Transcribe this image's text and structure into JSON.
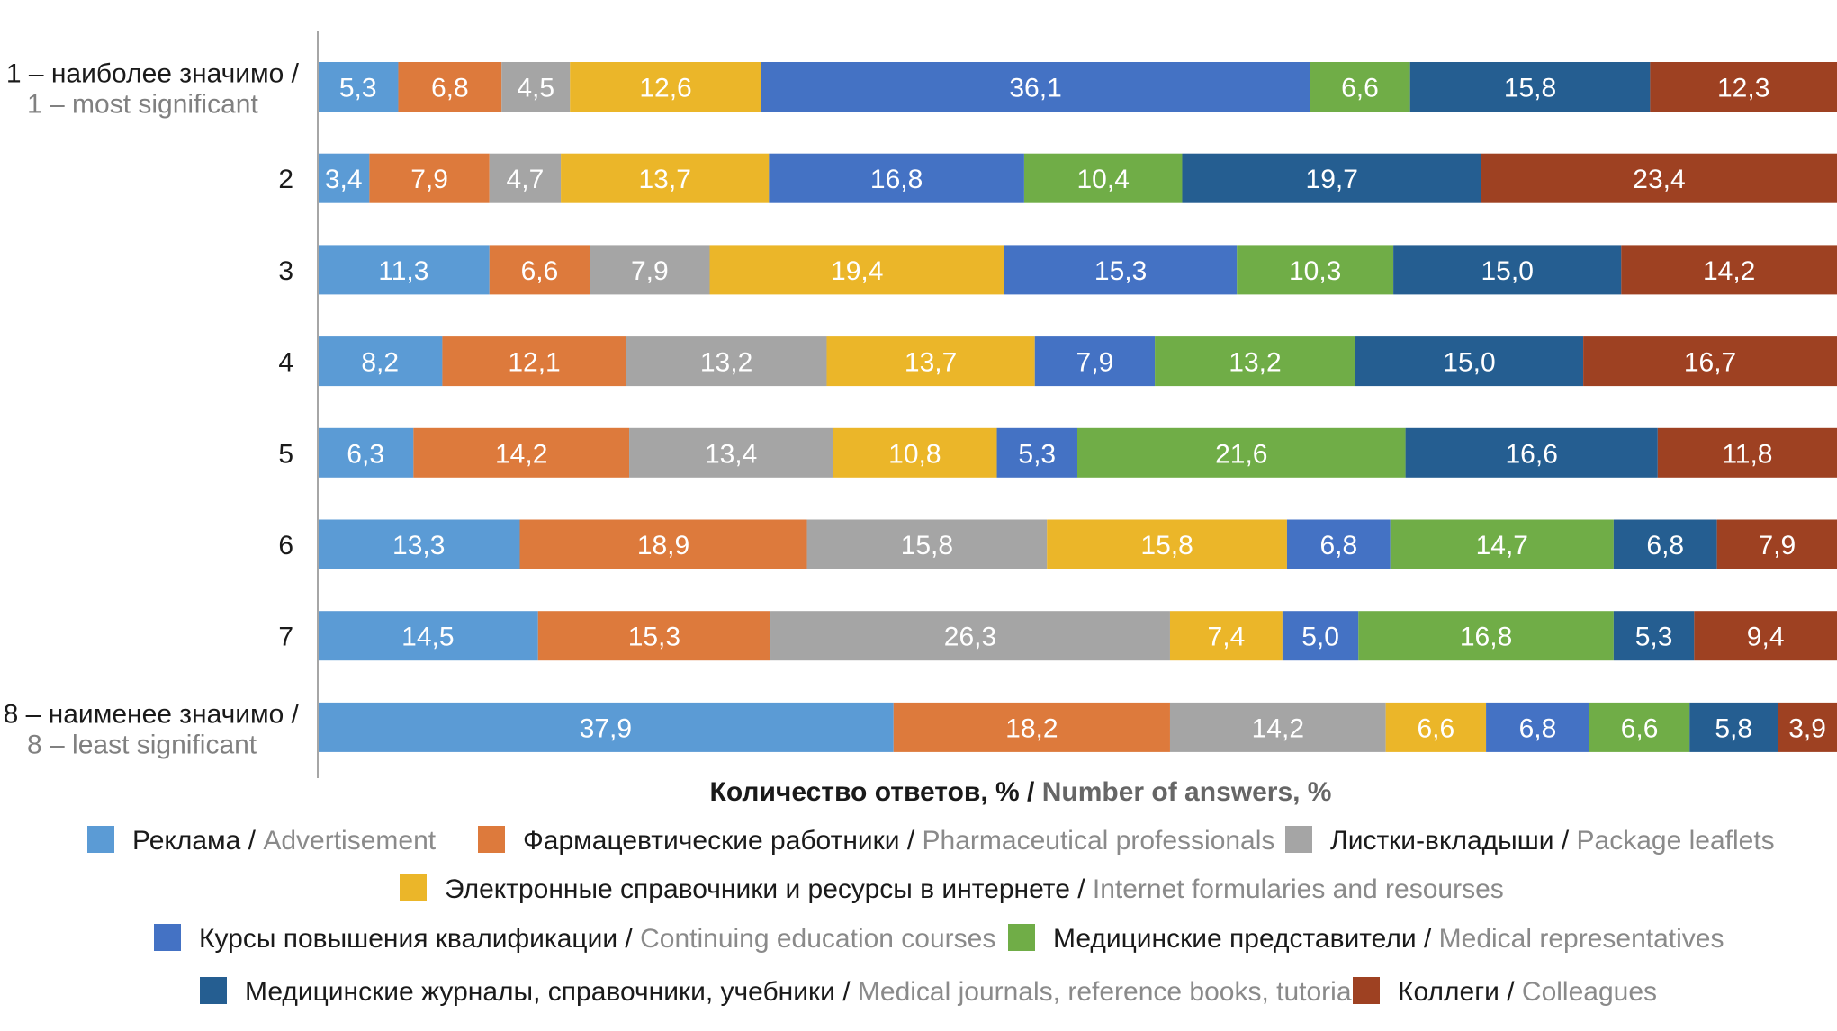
{
  "chart_data": {
    "type": "bar",
    "orientation": "horizontal",
    "stacked": true,
    "categories": [
      {
        "ru": "1 – наиболее значимо /",
        "en": "1 – most significant"
      },
      {
        "ru": "2",
        "en": ""
      },
      {
        "ru": "3",
        "en": ""
      },
      {
        "ru": "4",
        "en": ""
      },
      {
        "ru": "5",
        "en": ""
      },
      {
        "ru": "6",
        "en": ""
      },
      {
        "ru": "7",
        "en": ""
      },
      {
        "ru": "8 – наименее значимо /",
        "en": "8 – least significant"
      }
    ],
    "series": [
      {
        "ru": "Реклама",
        "en": "Advertisement",
        "color": "#5b9bd5",
        "values": [
          5.3,
          3.4,
          11.3,
          8.2,
          6.3,
          13.3,
          14.5,
          37.9
        ]
      },
      {
        "ru": "Фармацевтические работники",
        "en": "Pharmaceutical professionals",
        "color": "#dd7a3c",
        "values": [
          6.8,
          7.9,
          6.6,
          12.1,
          14.2,
          18.9,
          15.3,
          18.2
        ]
      },
      {
        "ru": "Листки-вкладыши",
        "en": "Package leaflets",
        "color": "#a5a5a5",
        "values": [
          4.5,
          4.7,
          7.9,
          13.2,
          13.4,
          15.8,
          26.3,
          14.2
        ]
      },
      {
        "ru": "Электронные справочники и ресурсы в интернете",
        "en": "Internet formularies and resourses",
        "color": "#ebb629",
        "values": [
          12.6,
          13.7,
          19.4,
          13.7,
          10.8,
          15.8,
          7.4,
          6.6
        ]
      },
      {
        "ru": "Курсы повышения квалификации",
        "en": "Continuing education courses",
        "color": "#4472c4",
        "values": [
          36.1,
          16.8,
          15.3,
          7.9,
          5.3,
          6.8,
          5.0,
          6.8
        ]
      },
      {
        "ru": "Медицинские представители",
        "en": "Medical representatives",
        "color": "#70ad47",
        "values": [
          6.6,
          10.4,
          10.3,
          13.2,
          21.6,
          14.7,
          16.8,
          6.6
        ]
      },
      {
        "ru": "Медицинские журналы, справочники, учебники",
        "en": "Medical journals, reference books, tutorials",
        "color": "#255e91",
        "values": [
          15.8,
          19.7,
          15.0,
          15.0,
          16.6,
          6.8,
          5.3,
          5.8
        ]
      },
      {
        "ru": "Коллеги",
        "en": "Colleagues",
        "color": "#9e4122",
        "values": [
          12.3,
          23.4,
          14.2,
          16.7,
          11.8,
          7.9,
          9.4,
          3.9
        ]
      }
    ],
    "xlabel": {
      "ru": "Количество ответов, % /",
      "en": "Number of answers, %"
    },
    "xlim": [
      0,
      100
    ],
    "grid": false,
    "decimal_separator": ",",
    "legend_position": "bottom",
    "colors": {
      "axis": "#a6a6a6",
      "text": "#1a1a1a",
      "secondary_text": "#8a8a8a",
      "label": "#ffffff"
    }
  }
}
